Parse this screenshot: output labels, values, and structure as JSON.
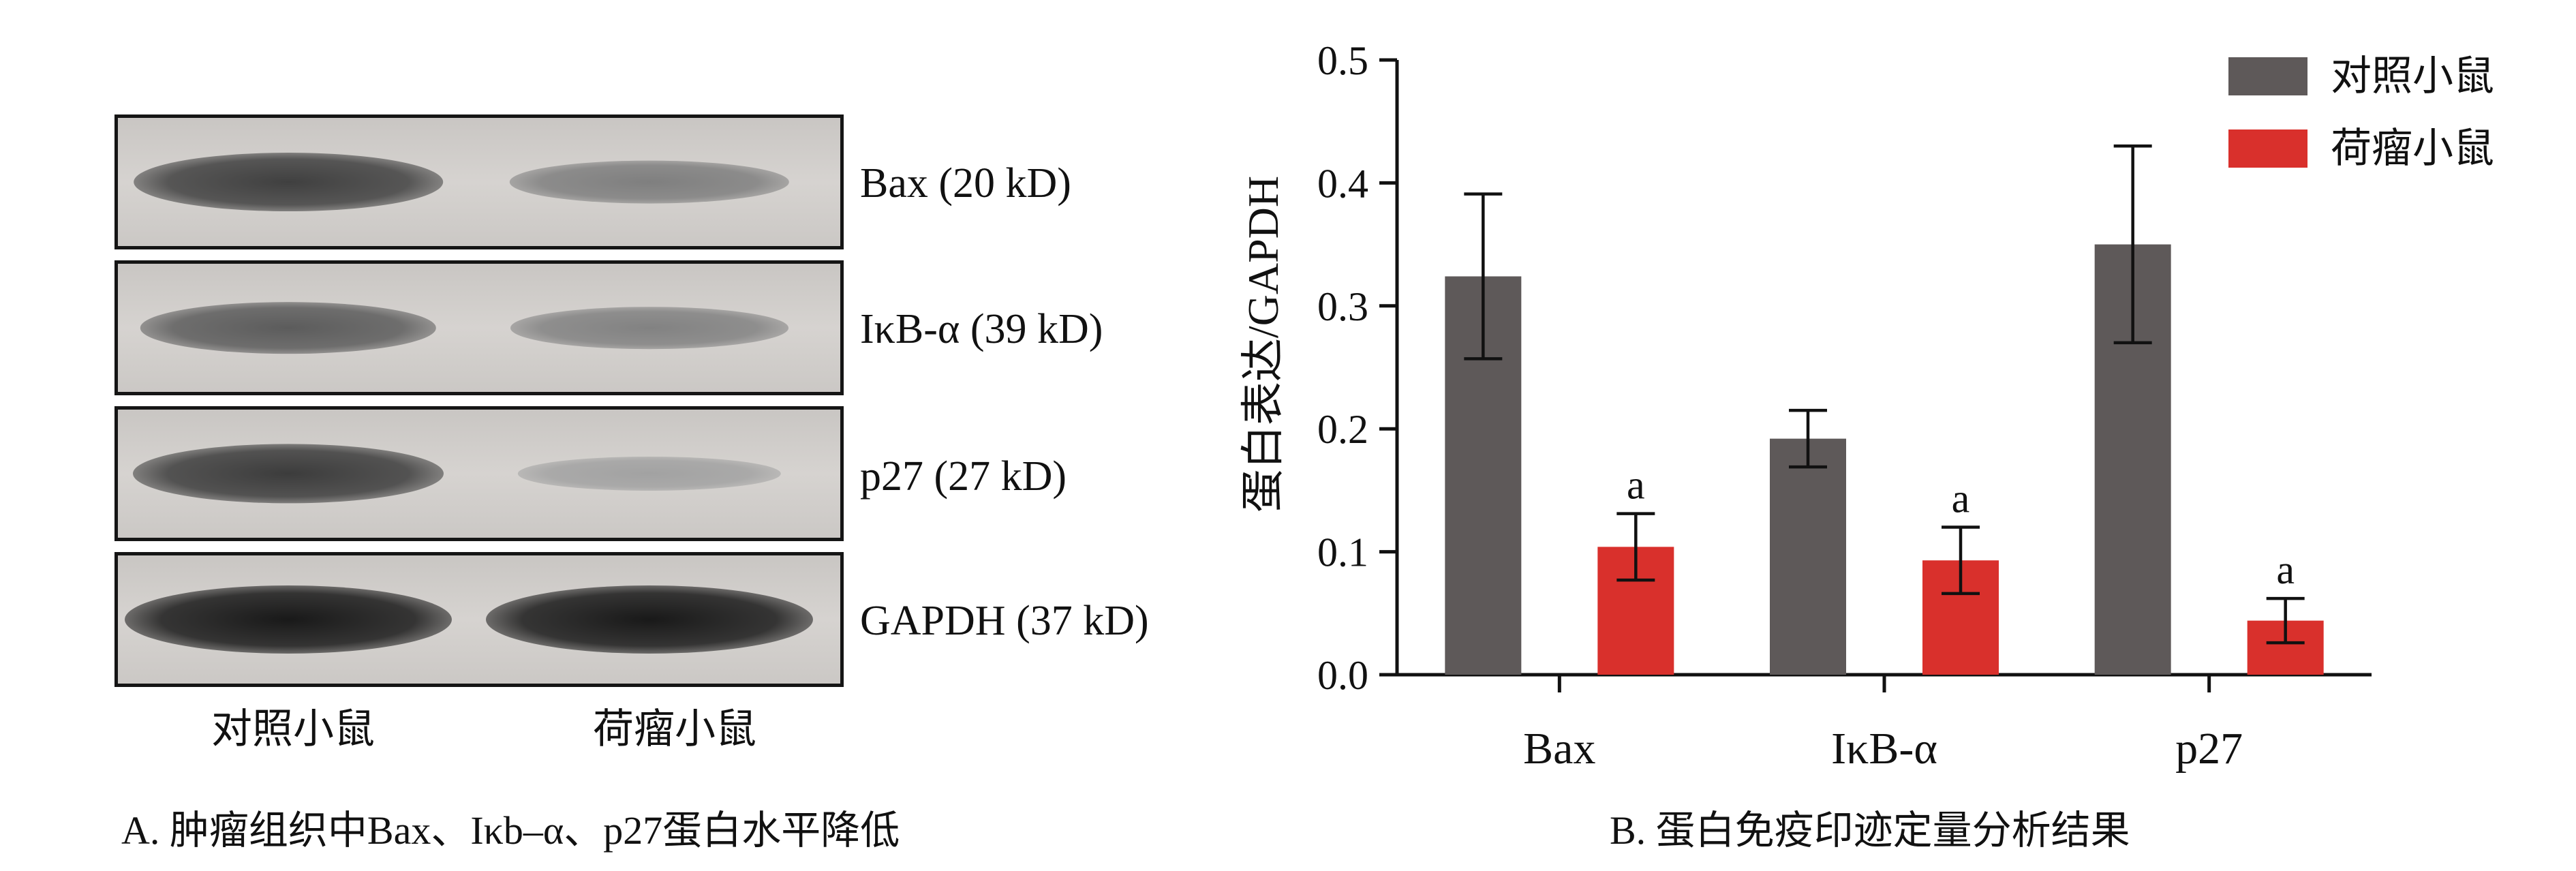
{
  "panel_a": {
    "blot_rows": [
      {
        "label": "Bax (20 kD)",
        "control": 0.78,
        "tumor": 0.42
      },
      {
        "label": "IκB-α (39 kD)",
        "control": 0.62,
        "tumor": 0.4
      },
      {
        "label": "p27 (27 kD)",
        "control": 0.8,
        "tumor": 0.22
      },
      {
        "label": "GAPDH (37 kD)",
        "control": 1.0,
        "tumor": 1.0
      }
    ],
    "lane_labels": [
      "对照小鼠",
      "荷瘤小鼠"
    ],
    "caption": "A. 肿瘤组织中Bax、Iκb–α、p27蛋白水平降低"
  },
  "panel_b": {
    "caption": "B. 蛋白免疫印迹定量分析结果"
  },
  "chart_data": {
    "type": "bar",
    "categories": [
      "Bax",
      "IκB-α",
      "p27"
    ],
    "series": [
      {
        "name": "对照小鼠",
        "values": [
          0.324,
          0.192,
          0.35
        ],
        "errors": [
          0.067,
          0.023,
          0.08
        ],
        "color": "#5e5959"
      },
      {
        "name": "荷瘤小鼠",
        "values": [
          0.104,
          0.093,
          0.044
        ],
        "errors": [
          0.027,
          0.027,
          0.018
        ],
        "color": "#d9302c"
      }
    ],
    "annotations": [
      "a",
      "a",
      "a"
    ],
    "ylabel": "蛋白表达/GAPDH",
    "xlabel": "",
    "ylim": [
      0,
      0.5
    ],
    "yticks": [
      "0.0",
      "0.1",
      "0.2",
      "0.3",
      "0.4",
      "0.5"
    ],
    "legend_position": "top-right",
    "grid": false
  }
}
